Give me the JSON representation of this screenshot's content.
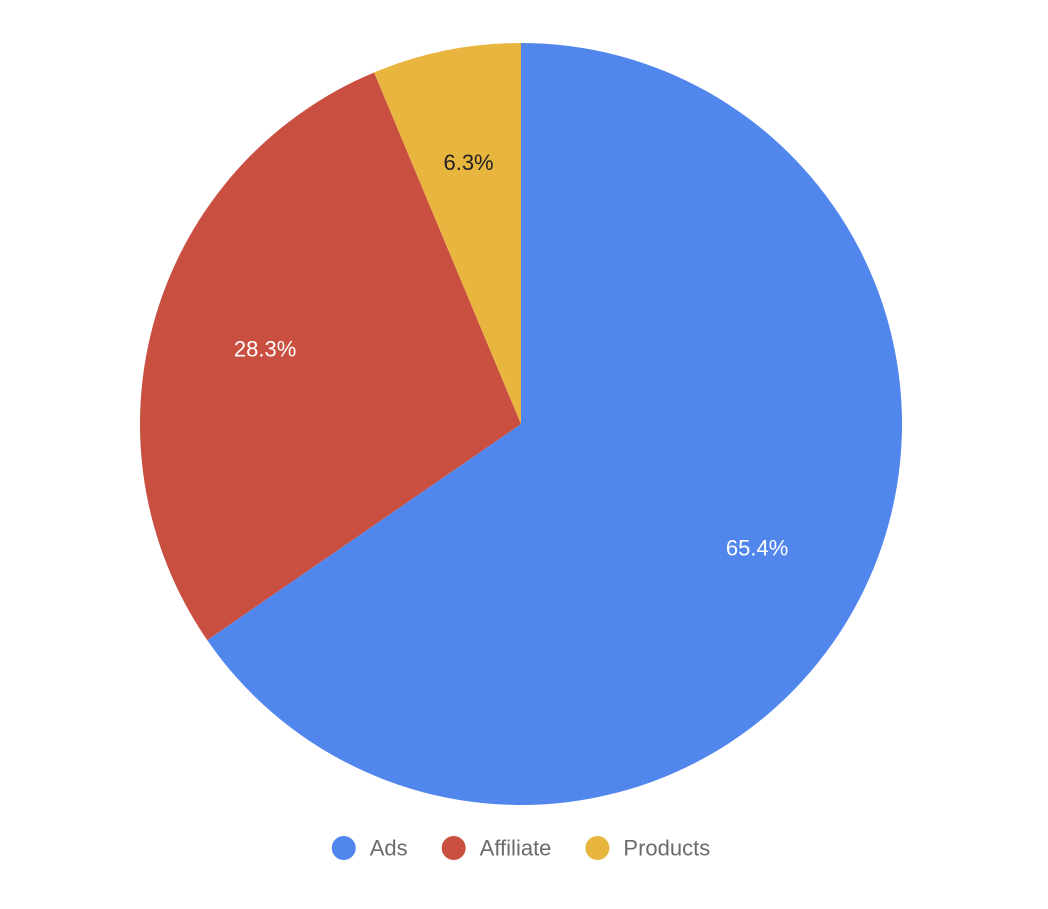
{
  "chart_data": {
    "type": "pie",
    "slices": [
      {
        "label": "Ads",
        "value": 65.4,
        "label_text": "65.4%",
        "color": "#5186ec",
        "text_color": "#ffffff"
      },
      {
        "label": "Affiliate",
        "value": 28.3,
        "label_text": "28.3%",
        "color": "#c94f40",
        "text_color": "#ffffff"
      },
      {
        "label": "Products",
        "value": 6.3,
        "label_text": "6.3%",
        "color": "#e8b53f",
        "text_color": "#222222"
      }
    ],
    "start_angle": "12 o'clock",
    "direction": "clockwise",
    "legend": {
      "position": "bottom-center",
      "items": [
        "Ads",
        "Affiliate",
        "Products"
      ]
    }
  }
}
